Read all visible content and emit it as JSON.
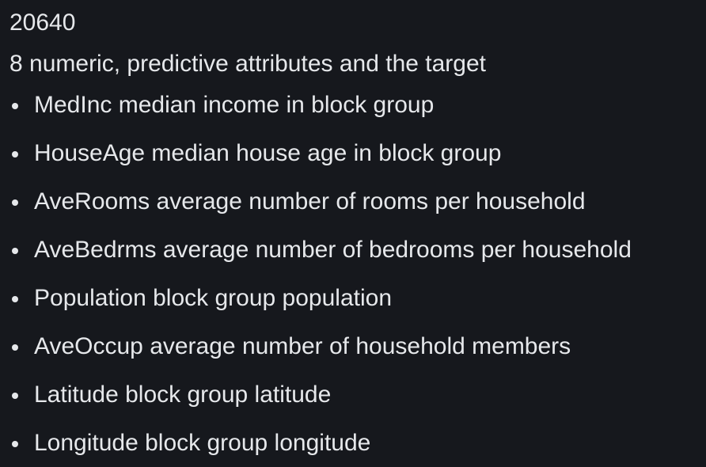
{
  "dataset": {
    "count": "20640",
    "description": "8 numeric, predictive attributes and the target"
  },
  "attributes": [
    {
      "text": "MedInc median income in block group"
    },
    {
      "text": "HouseAge median house age in block group"
    },
    {
      "text": "AveRooms average number of rooms per household"
    },
    {
      "text": "AveBedrms average number of bedrooms per household"
    },
    {
      "text": "Population block group population"
    },
    {
      "text": "AveOccup average number of household members"
    },
    {
      "text": "Latitude block group latitude"
    },
    {
      "text": "Longitude block group longitude"
    }
  ]
}
